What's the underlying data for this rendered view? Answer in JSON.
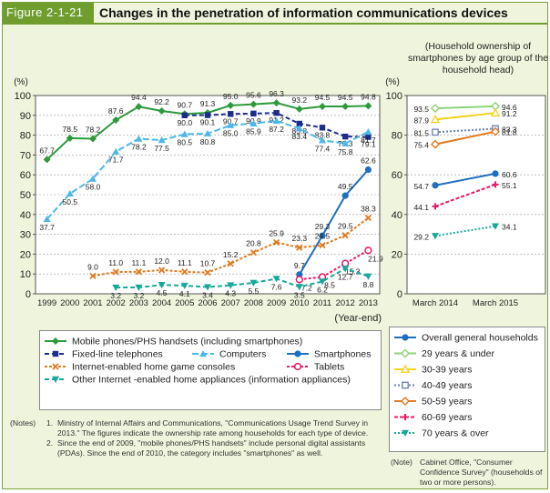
{
  "header": {
    "figure_label": "Figure 2-1-21",
    "title": "Changes in the penetration of information communications devices"
  },
  "chart_data": [
    {
      "type": "line",
      "ylabel": "(%)",
      "xlabel": "(Year-end)",
      "ylim": [
        0,
        100
      ],
      "yticks": [
        "0",
        "10",
        "20",
        "30",
        "40",
        "50",
        "60",
        "70",
        "80",
        "90",
        "100"
      ],
      "categories": [
        "1999",
        "2000",
        "2001",
        "2002",
        "2003",
        "2004",
        "2005",
        "2006",
        "2007",
        "2008",
        "2009",
        "2010",
        "2011",
        "2012",
        "2013"
      ],
      "series": [
        {
          "name": "Mobile phones/PHS handsets (including smartphones)",
          "color": "#2e9a3c",
          "dash": "",
          "marker": "diamond",
          "values": [
            67.7,
            78.5,
            78.2,
            87.6,
            94.4,
            92.2,
            90.7,
            91.3,
            95.0,
            95.6,
            96.3,
            93.2,
            94.5,
            94.5,
            94.8
          ],
          "labels": [
            "67.7",
            "78.5",
            "78.2",
            "87.6",
            "94.4",
            "92.2",
            "90.7",
            "91.3",
            "95.0",
            "95.6",
            "96.3",
            "93.2",
            "94.5",
            "94.5",
            "94.8"
          ]
        },
        {
          "name": "Fixed-line telephones",
          "color": "#1c2c8c",
          "dash": "5,3",
          "marker": "square",
          "values": [
            null,
            null,
            null,
            null,
            null,
            null,
            90.0,
            90.1,
            90.7,
            90.9,
            91.2,
            85.8,
            83.8,
            79.3,
            79.1
          ],
          "labels": [
            "",
            "",
            "",
            "",
            "",
            "",
            "90.0",
            "90.1",
            "90.7",
            "90.9",
            "91.2",
            "85.8",
            "83.8",
            "79.3",
            "79.1"
          ]
        },
        {
          "name": "Computers",
          "color": "#4db8e8",
          "dash": "7,3",
          "marker": "triangle",
          "values": [
            37.7,
            50.5,
            58.0,
            71.7,
            78.2,
            77.5,
            80.5,
            80.8,
            85.0,
            85.9,
            87.2,
            83.4,
            77.4,
            75.8,
            81.7
          ],
          "labels": [
            "37.7",
            "50.5",
            "58.0",
            "71.7",
            "78.2",
            "77.5",
            "80.5",
            "80.8",
            "85.0",
            "85.9",
            "87.2",
            "83.4",
            "77.4",
            "75.8",
            "81.7"
          ]
        },
        {
          "name": "Smartphones",
          "color": "#1f6fbf",
          "dash": "",
          "marker": "circle",
          "values": [
            null,
            null,
            null,
            null,
            null,
            null,
            null,
            null,
            null,
            null,
            null,
            9.7,
            29.3,
            49.5,
            62.6
          ],
          "labels": [
            "",
            "",
            "",
            "",
            "",
            "",
            "",
            "",
            "",
            "",
            "",
            "9.7",
            "29.3",
            "49.5",
            "62.6"
          ]
        },
        {
          "name": "Internet-enabled home game consoles",
          "color": "#e07a20",
          "dash": "3,2",
          "marker": "x",
          "values": [
            null,
            null,
            9.0,
            11.0,
            11.1,
            12.0,
            11.1,
            10.7,
            15.2,
            20.8,
            25.9,
            23.3,
            24.5,
            29.5,
            38.3
          ],
          "labels": [
            "",
            "",
            "9.0",
            "11.0",
            "11.1",
            "12.0",
            "11.1",
            "10.7",
            "15.2",
            "20.8",
            "25.9",
            "23.3",
            "24.5",
            "29.5",
            "38.3"
          ]
        },
        {
          "name": "Tablets",
          "color": "#e8186a",
          "dash": "3,2",
          "marker": "circle-open",
          "values": [
            null,
            null,
            null,
            null,
            null,
            null,
            null,
            null,
            null,
            null,
            null,
            7.2,
            8.5,
            15.3,
            21.9
          ],
          "labels": [
            "",
            "",
            "",
            "",
            "",
            "",
            "",
            "",
            "",
            "",
            "",
            "7.2",
            "8.5",
            "15.3",
            "21.9"
          ]
        },
        {
          "name": "Other Internet -enabled home appliances (information appliances)",
          "color": "#18a89a",
          "dash": "5,3",
          "marker": "triangle-down",
          "values": [
            null,
            null,
            null,
            3.2,
            3.2,
            4.5,
            4.1,
            3.4,
            4.3,
            5.5,
            7.6,
            3.5,
            6.2,
            12.7,
            8.8
          ],
          "labels": [
            "",
            "",
            "",
            "3.2",
            "3.2",
            "4.5",
            "4.1",
            "3.4",
            "4.3",
            "5.5",
            "7.6",
            "3.5",
            "6.2",
            "12.7",
            "8.8"
          ]
        }
      ]
    },
    {
      "type": "line",
      "title": "(Household ownership of smartphones by age group of the household head)",
      "ylabel": "(%)",
      "ylim": [
        0,
        100
      ],
      "yticks": [
        "0",
        "20",
        "40",
        "60",
        "80",
        "100"
      ],
      "categories": [
        "March 2014",
        "March 2015"
      ],
      "series": [
        {
          "name": "Overall general households",
          "color": "#1f6fbf",
          "dash": "",
          "marker": "circle",
          "values": [
            54.7,
            60.6
          ],
          "labels": [
            "54.7",
            "60.6"
          ]
        },
        {
          "name": "29 years & under",
          "color": "#8fd17a",
          "dash": "",
          "marker": "diamond-open",
          "values": [
            93.5,
            94.6
          ],
          "labels": [
            "93.5",
            "94.6"
          ]
        },
        {
          "name": "30-39 years",
          "color": "#f2d21a",
          "dash": "",
          "marker": "triangle-open",
          "values": [
            87.9,
            91.2
          ],
          "labels": [
            "87.9",
            "91.2"
          ]
        },
        {
          "name": "40-49 years",
          "color": "#6a7fb8",
          "dash": "2,2",
          "marker": "square-open",
          "values": [
            81.5,
            83.3
          ],
          "labels": [
            "81.5",
            "83.3"
          ]
        },
        {
          "name": "50-59 years",
          "color": "#e07a20",
          "dash": "",
          "marker": "diamond-open",
          "values": [
            75.4,
            81.8
          ],
          "labels": [
            "75.4",
            "81.8"
          ]
        },
        {
          "name": "60-69 years",
          "color": "#e8186a",
          "dash": "4,2",
          "marker": "plus",
          "values": [
            44.1,
            55.1
          ],
          "labels": [
            "44.1",
            "55.1"
          ]
        },
        {
          "name": "70 years & over",
          "color": "#18a89a",
          "dash": "2,2",
          "marker": "triangle-down",
          "values": [
            29.2,
            34.1
          ],
          "labels": [
            "29.2",
            "34.1"
          ]
        }
      ]
    }
  ],
  "legend_left": [
    "Mobile phones/PHS handsets (including smartphones)",
    "Fixed-line telephones",
    "Computers",
    "Smartphones",
    "Internet-enabled home game consoles",
    "Tablets",
    "Other Internet -enabled home appliances (information appliances)"
  ],
  "legend_right": [
    "Overall general households",
    "29 years & under",
    "30-39 years",
    "40-49 years",
    "50-59 years",
    "60-69 years",
    "70 years & over"
  ],
  "notes": {
    "label": "(Notes)",
    "n1_num": "1.",
    "n1": "Ministry of Internal Affairs and Communications, \"Communications Usage Trend Survey in 2013.\" The figures indicate the ownership rate among households for each type of device.",
    "n2_num": "2.",
    "n2": "Since the end of 2009, \"mobile phones/PHS handsets\" include personal digital assistants (PDAs). Since the end of 2010, the category includes \"smartphones\" as well."
  },
  "note_right": {
    "label": "(Note)",
    "text": "Cabinet Office, \"Consumer Confidence Survey\" (households of two or more persons)."
  }
}
